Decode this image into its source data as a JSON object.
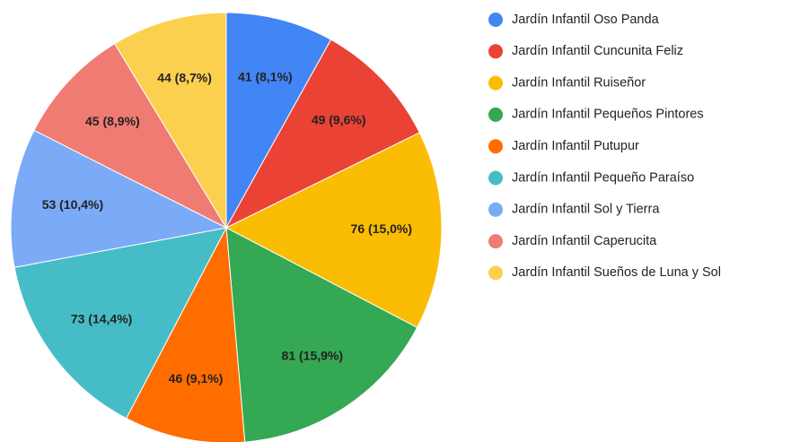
{
  "chart_data": {
    "type": "pie",
    "categories": [
      "Jardín Infantil Oso Panda",
      "Jardín Infantil Cuncunita Feliz",
      "Jardín Infantil Ruiseñor",
      "Jardín Infantil Pequeños Pintores",
      "Jardín Infantil Putupur",
      "Jardín Infantil Pequeño Paraíso",
      "Jardín Infantil Sol y Tierra",
      "Jardín Infantil Caperucita",
      "Jardín Infantil Sueños de Luna y Sol"
    ],
    "values": [
      41,
      49,
      76,
      81,
      46,
      73,
      53,
      45,
      44
    ],
    "value_labels": [
      "41 (8,1%)",
      "49 (9,6%)",
      "76 (15,0%)",
      "81 (15,9%)",
      "46 (9,1%)",
      "73 (14,4%)",
      "53 (10,4%)",
      "45 (8,9%)",
      "44 (8,7%)"
    ],
    "colors": [
      "#4285f4",
      "#ea4335",
      "#fbbc04",
      "#34a853",
      "#ff6d01",
      "#46bdc6",
      "#7baaf7",
      "#f07b72",
      "#fcd04f"
    ],
    "legend": "right"
  }
}
